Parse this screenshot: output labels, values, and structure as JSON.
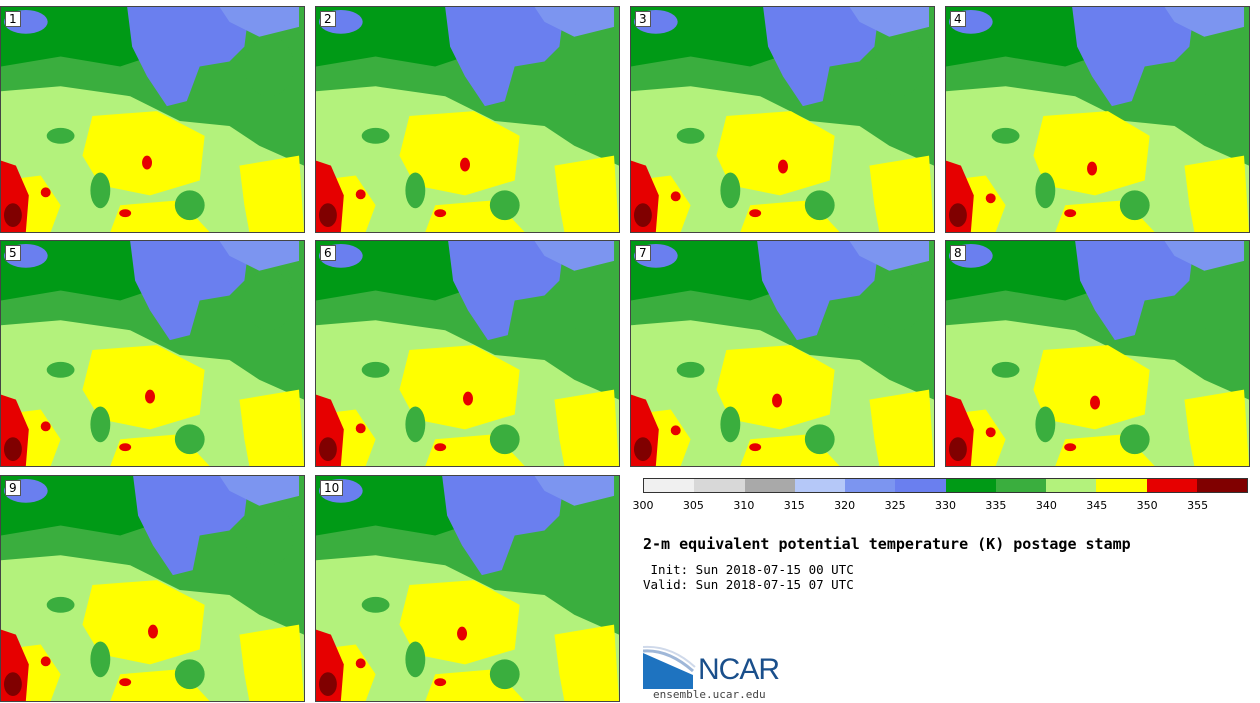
{
  "panels": [
    {
      "label": "1"
    },
    {
      "label": "2"
    },
    {
      "label": "3"
    },
    {
      "label": "4"
    },
    {
      "label": "5"
    },
    {
      "label": "6"
    },
    {
      "label": "7"
    },
    {
      "label": "8"
    },
    {
      "label": "9"
    },
    {
      "label": "10"
    }
  ],
  "colorbar": {
    "colors": [
      "#f0f0f0",
      "#d8d8d8",
      "#a9a9a9",
      "#b5c8f8",
      "#7c95f0",
      "#6a7fef",
      "#009a16",
      "#3aae3e",
      "#b3f27c",
      "#ffff00",
      "#e60000",
      "#800000"
    ],
    "ticks": [
      "300",
      "305",
      "310",
      "315",
      "320",
      "325",
      "330",
      "335",
      "340",
      "345",
      "350",
      "355"
    ]
  },
  "title": "2-m equivalent potential temperature (K) postage stamp",
  "init": " Init: Sun 2018-07-15 00 UTC",
  "valid": "Valid: Sun 2018-07-15 07 UTC",
  "logo": {
    "text": "NCAR",
    "site": "ensemble.ucar.edu"
  }
}
